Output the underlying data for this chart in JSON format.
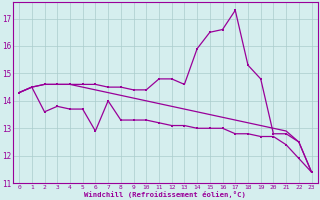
{
  "xlabel": "Windchill (Refroidissement éolien,°C)",
  "ylabel": "",
  "background_color": "#d5eeee",
  "line_color": "#990099",
  "grid_color": "#aacccc",
  "text_color": "#990099",
  "xlim": [
    -0.5,
    23.5
  ],
  "ylim": [
    11,
    17.6
  ],
  "yticks": [
    11,
    12,
    13,
    14,
    15,
    16,
    17
  ],
  "xticks": [
    0,
    1,
    2,
    3,
    4,
    5,
    6,
    7,
    8,
    9,
    10,
    11,
    12,
    13,
    14,
    15,
    16,
    17,
    18,
    19,
    20,
    21,
    22,
    23
  ],
  "line1_x": [
    0,
    1,
    2,
    3,
    4,
    5,
    6,
    7,
    8,
    9,
    10,
    11,
    12,
    13,
    14,
    15,
    16,
    17,
    18,
    19,
    20,
    21,
    22,
    23
  ],
  "line1_y": [
    14.3,
    14.5,
    13.6,
    13.8,
    13.7,
    13.7,
    12.9,
    14.0,
    13.3,
    13.3,
    13.3,
    13.2,
    13.1,
    13.1,
    13.0,
    13.0,
    13.0,
    12.8,
    12.8,
    12.7,
    12.7,
    12.4,
    11.9,
    11.4
  ],
  "line2_x": [
    0,
    1,
    2,
    3,
    4,
    5,
    6,
    7,
    8,
    9,
    10,
    11,
    12,
    13,
    14,
    15,
    16,
    17,
    18,
    19,
    20,
    21,
    22,
    23
  ],
  "line2_y": [
    14.3,
    14.5,
    14.6,
    14.6,
    14.6,
    14.6,
    14.6,
    14.5,
    14.5,
    14.4,
    14.4,
    14.8,
    14.8,
    14.6,
    15.9,
    16.5,
    16.6,
    17.3,
    15.3,
    14.8,
    12.8,
    12.8,
    12.5,
    11.4
  ],
  "line3_x": [
    0,
    1,
    2,
    3,
    4,
    5,
    6,
    7,
    8,
    9,
    10,
    11,
    12,
    13,
    14,
    15,
    16,
    17,
    18,
    19,
    20,
    21,
    22,
    23
  ],
  "line3_y": [
    14.3,
    14.5,
    14.6,
    14.6,
    14.6,
    14.5,
    14.4,
    14.3,
    14.2,
    14.1,
    14.0,
    13.9,
    13.8,
    13.7,
    13.6,
    13.5,
    13.4,
    13.3,
    13.2,
    13.1,
    13.0,
    12.9,
    12.5,
    11.4
  ]
}
